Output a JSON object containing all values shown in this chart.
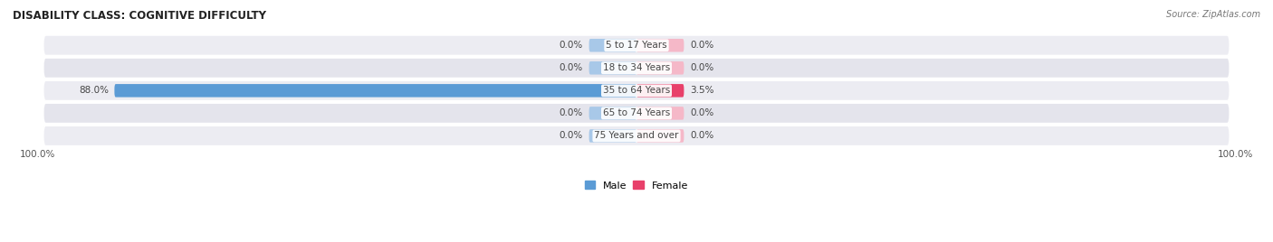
{
  "title": "DISABILITY CLASS: COGNITIVE DIFFICULTY",
  "source": "Source: ZipAtlas.com",
  "categories": [
    "5 to 17 Years",
    "18 to 34 Years",
    "35 to 64 Years",
    "65 to 74 Years",
    "75 Years and over"
  ],
  "male_values": [
    0.0,
    0.0,
    88.0,
    0.0,
    0.0
  ],
  "female_values": [
    0.0,
    0.0,
    3.5,
    0.0,
    0.0
  ],
  "male_color_light": "#a8c8e8",
  "male_color_strong": "#5b9bd5",
  "female_color_light": "#f5b8c8",
  "female_color_strong": "#e8406a",
  "row_color_odd": "#ececf2",
  "row_color_even": "#e4e4ec",
  "label_color": "#444444",
  "title_color": "#222222",
  "source_color": "#777777",
  "axis_label_color": "#555555",
  "min_bar_width": 8.0,
  "max_value": 100.0,
  "figsize": [
    14.06,
    2.68
  ],
  "dpi": 100
}
